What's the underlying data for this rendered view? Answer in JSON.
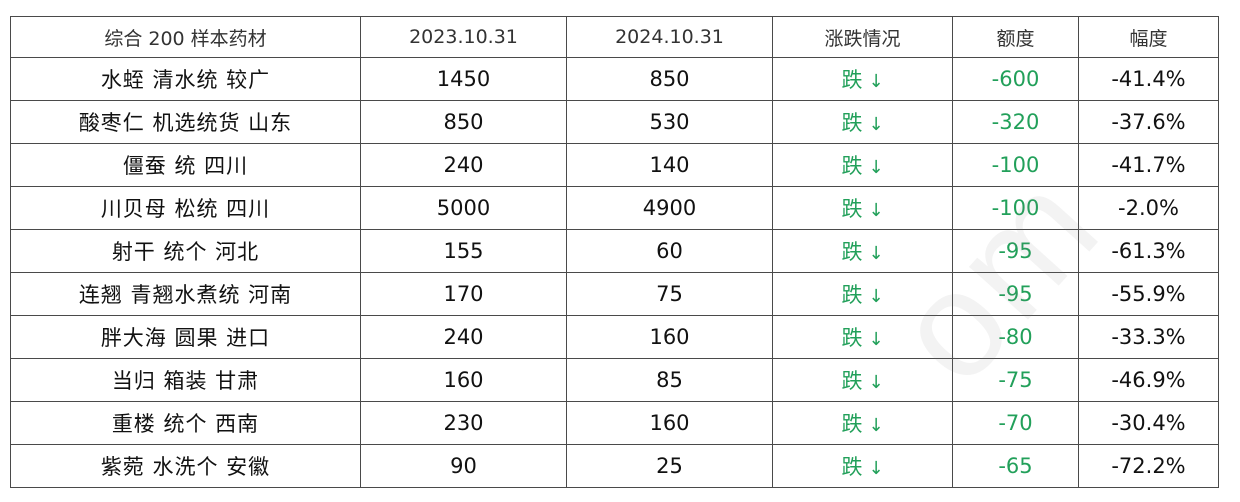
{
  "table": {
    "headers": [
      "综合 200 样本药材",
      "2023.10.31",
      "2024.10.31",
      "涨跌情况",
      "额度",
      "幅度"
    ],
    "trend_color": "#22a05a",
    "arrow_symbol": "↓",
    "rows": [
      {
        "name": "水蛭 清水统 较广",
        "price_2023": "1450",
        "price_2024": "850",
        "trend": "跌",
        "amount": "-600",
        "percent": "-41.4%"
      },
      {
        "name": "酸枣仁 机选统货 山东",
        "price_2023": "850",
        "price_2024": "530",
        "trend": "跌",
        "amount": "-320",
        "percent": "-37.6%"
      },
      {
        "name": "僵蚕 统 四川",
        "price_2023": "240",
        "price_2024": "140",
        "trend": "跌",
        "amount": "-100",
        "percent": "-41.7%"
      },
      {
        "name": "川贝母 松统 四川",
        "price_2023": "5000",
        "price_2024": "4900",
        "trend": "跌",
        "amount": "-100",
        "percent": "-2.0%"
      },
      {
        "name": "射干 统个 河北",
        "price_2023": "155",
        "price_2024": "60",
        "trend": "跌",
        "amount": "-95",
        "percent": "-61.3%"
      },
      {
        "name": "连翘 青翘水煮统 河南",
        "price_2023": "170",
        "price_2024": "75",
        "trend": "跌",
        "amount": "-95",
        "percent": "-55.9%"
      },
      {
        "name": "胖大海 圆果 进口",
        "price_2023": "240",
        "price_2024": "160",
        "trend": "跌",
        "amount": "-80",
        "percent": "-33.3%"
      },
      {
        "name": "当归 箱装 甘肃",
        "price_2023": "160",
        "price_2024": "85",
        "trend": "跌",
        "amount": "-75",
        "percent": "-46.9%"
      },
      {
        "name": "重楼 统个 西南",
        "price_2023": "230",
        "price_2024": "160",
        "trend": "跌",
        "amount": "-70",
        "percent": "-30.4%"
      },
      {
        "name": "紫菀 水洗个 安徽",
        "price_2023": "90",
        "price_2024": "25",
        "trend": "跌",
        "amount": "-65",
        "percent": "-72.2%"
      }
    ]
  },
  "watermark": {
    "text": "om"
  }
}
